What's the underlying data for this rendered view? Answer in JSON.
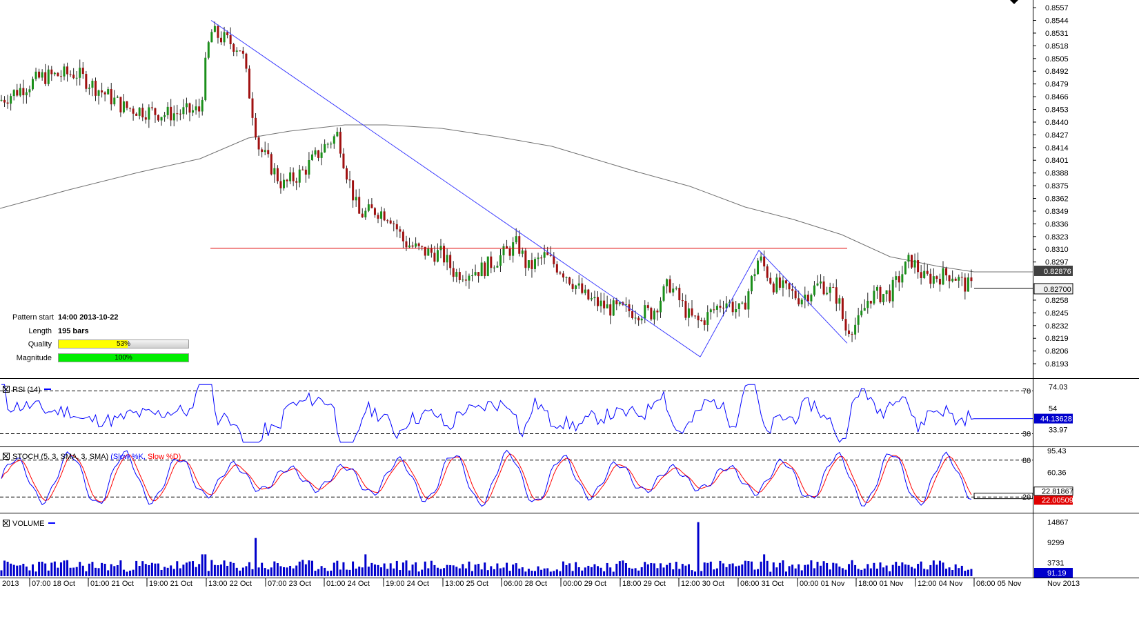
{
  "price_axis": {
    "ticks": [
      "0.8557",
      "0.8544",
      "0.8531",
      "0.8518",
      "0.8505",
      "0.8492",
      "0.8479",
      "0.8466",
      "0.8453",
      "0.8440",
      "0.8427",
      "0.8414",
      "0.8401",
      "0.8388",
      "0.8375",
      "0.8362",
      "0.8349",
      "0.8336",
      "0.8323",
      "0.8310",
      "0.8297",
      "0.8258",
      "0.8245",
      "0.8232",
      "0.8219",
      "0.8206",
      "0.8193"
    ],
    "ma_badge": "0.82876",
    "price_badge": "0.82700"
  },
  "time_axis": [
    "2013",
    "07:00 18 Oct",
    "01:00 21 Oct",
    "19:00 21 Oct",
    "13:00 22 Oct",
    "07:00 23 Oct",
    "01:00 24 Oct",
    "19:00 24 Oct",
    "13:00 25 Oct",
    "06:00 28 Oct",
    "00:00 29 Oct",
    "18:00 29 Oct",
    "12:00 30 Oct",
    "06:00 31 Oct",
    "00:00 01 Nov",
    "18:00 01 Nov",
    "12:00 04 Nov",
    "06:00 05 Nov",
    "Nov 2013"
  ],
  "pattern": {
    "start_label": "Pattern start",
    "start_value": "14:00 2013-10-22",
    "length_label": "Length",
    "length_value": "195 bars",
    "quality_label": "Quality",
    "quality_text": "53%",
    "quality": 0.53,
    "magnitude_label": "Magnitude",
    "magnitude_text": "100%",
    "magnitude": 1.0,
    "quality_color": "#ffff00",
    "magnitude_color": "#00ee00"
  },
  "rsi": {
    "title": "RSI (14)",
    "axis": [
      "74.03",
      "54",
      "33.97"
    ],
    "levels": [
      "70",
      "30"
    ],
    "value": "44.13628"
  },
  "stoch": {
    "title_prefix": "STOCH (5, 3, SMA, 3, SMA)",
    "k_label": "(Slow %K,",
    "d_label": "Slow %D)",
    "axis": [
      "95.43",
      "60.36"
    ],
    "levels": [
      "80",
      "20"
    ],
    "value_k": "22.81867",
    "value_d": "22.00509",
    "k_color": "#0000ff",
    "d_color": "#ff0000"
  },
  "volume": {
    "title": "VOLUME",
    "axis": [
      "14867",
      "9299",
      "3731"
    ],
    "value": "91.19"
  },
  "colors": {
    "bull": "#1a8f1a",
    "bear": "#a01010",
    "trend": "#3b3bff",
    "neckline": "#e00000",
    "ma": "#707070",
    "badge_blue": "#0000cc",
    "badge_dark": "#404040"
  },
  "chart_data": {
    "type": "candlestick",
    "neckline_price": 0.8311,
    "pattern_points_price": [
      0.8544,
      0.8319,
      0.82,
      0.8309,
      0.8214
    ],
    "price_range": [
      0.8186,
      0.8562
    ]
  }
}
